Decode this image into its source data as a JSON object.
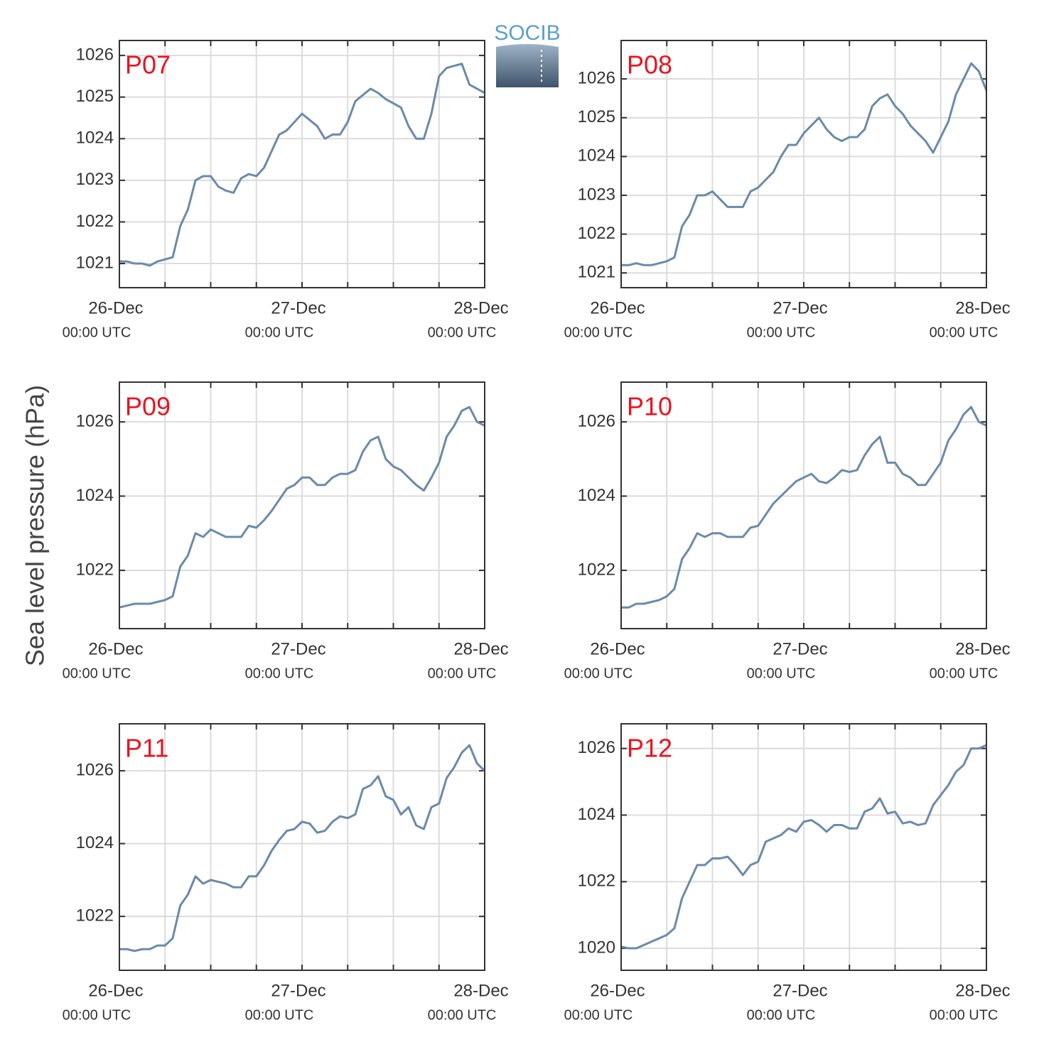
{
  "logo": "SOCIB",
  "ylabel": "Sea level pressure (hPa)",
  "chart_data": [
    {
      "type": "line",
      "title": "P07",
      "title_color": "#e8141e",
      "color": "#6a8aab",
      "grid": true,
      "x": [
        0,
        1,
        2,
        3,
        4,
        5,
        6,
        7,
        8,
        9,
        10,
        11,
        12,
        13,
        14,
        15,
        16,
        17,
        18,
        19,
        20,
        21,
        22,
        23,
        24,
        25,
        26,
        27,
        28,
        29,
        30,
        31,
        32,
        33,
        34,
        35,
        36,
        37,
        38,
        39,
        40,
        41,
        42,
        43,
        44,
        45,
        46,
        47,
        48
      ],
      "values": [
        1021.05,
        1021.05,
        1021.0,
        1021.0,
        1020.95,
        1021.05,
        1021.1,
        1021.15,
        1021.9,
        1022.3,
        1023.0,
        1023.1,
        1023.1,
        1022.85,
        1022.75,
        1022.7,
        1023.05,
        1023.15,
        1023.1,
        1023.3,
        1023.7,
        1024.1,
        1024.2,
        1024.4,
        1024.6,
        1024.45,
        1024.3,
        1024.0,
        1024.1,
        1024.1,
        1024.4,
        1024.9,
        1025.05,
        1025.2,
        1025.1,
        1024.95,
        1024.85,
        1024.75,
        1024.3,
        1024.0,
        1024.0,
        1024.6,
        1025.5,
        1025.7,
        1025.75,
        1025.8,
        1025.3,
        1025.2,
        1025.1
      ],
      "xlim": [
        0,
        48
      ],
      "xticks": [
        {
          "value": 0,
          "label": "26-Dec",
          "sublabel": "00:00 UTC"
        },
        {
          "value": 24,
          "label": "27-Dec",
          "sublabel": "00:00 UTC"
        },
        {
          "value": 48,
          "label": "28-Dec",
          "sublabel": "00:00 UTC"
        }
      ],
      "xminorticks": [
        6,
        12,
        18,
        30,
        36,
        42
      ],
      "ylim": [
        1020.42,
        1026.36
      ],
      "yticks": [
        1021,
        1022,
        1023,
        1024,
        1025,
        1026
      ]
    },
    {
      "type": "line",
      "title": "P08",
      "title_color": "#e8141e",
      "color": "#6a8aab",
      "grid": true,
      "x": [
        0,
        1,
        2,
        3,
        4,
        5,
        6,
        7,
        8,
        9,
        10,
        11,
        12,
        13,
        14,
        15,
        16,
        17,
        18,
        19,
        20,
        21,
        22,
        23,
        24,
        25,
        26,
        27,
        28,
        29,
        30,
        31,
        32,
        33,
        34,
        35,
        36,
        37,
        38,
        39,
        40,
        41,
        42,
        43,
        44,
        45,
        46,
        47,
        48
      ],
      "values": [
        1021.2,
        1021.2,
        1021.25,
        1021.2,
        1021.2,
        1021.25,
        1021.3,
        1021.4,
        1022.2,
        1022.5,
        1023.0,
        1023.0,
        1023.1,
        1022.9,
        1022.7,
        1022.7,
        1022.7,
        1023.1,
        1023.2,
        1023.4,
        1023.6,
        1024.0,
        1024.3,
        1024.3,
        1024.6,
        1024.8,
        1025.0,
        1024.7,
        1024.5,
        1024.4,
        1024.5,
        1024.5,
        1024.7,
        1025.3,
        1025.5,
        1025.6,
        1025.3,
        1025.1,
        1024.8,
        1024.6,
        1024.4,
        1024.1,
        1024.5,
        1024.9,
        1025.6,
        1026.0,
        1026.4,
        1026.2,
        1025.7
      ],
      "xlim": [
        0,
        48
      ],
      "xticks": [
        {
          "value": 0,
          "label": "26-Dec",
          "sublabel": "00:00 UTC"
        },
        {
          "value": 24,
          "label": "27-Dec",
          "sublabel": "00:00 UTC"
        },
        {
          "value": 48,
          "label": "28-Dec",
          "sublabel": "00:00 UTC"
        }
      ],
      "xminorticks": [
        6,
        12,
        18,
        30,
        36,
        42
      ],
      "ylim": [
        1020.62,
        1026.99
      ],
      "yticks": [
        1021,
        1022,
        1023,
        1024,
        1025,
        1026
      ]
    },
    {
      "type": "line",
      "title": "P09",
      "title_color": "#e8141e",
      "color": "#6a8aab",
      "grid": true,
      "x": [
        0,
        1,
        2,
        3,
        4,
        5,
        6,
        7,
        8,
        9,
        10,
        11,
        12,
        13,
        14,
        15,
        16,
        17,
        18,
        19,
        20,
        21,
        22,
        23,
        24,
        25,
        26,
        27,
        28,
        29,
        30,
        31,
        32,
        33,
        34,
        35,
        36,
        37,
        38,
        39,
        40,
        41,
        42,
        43,
        44,
        45,
        46,
        47,
        48
      ],
      "values": [
        1021.0,
        1021.05,
        1021.1,
        1021.1,
        1021.1,
        1021.15,
        1021.2,
        1021.3,
        1022.1,
        1022.4,
        1023.0,
        1022.9,
        1023.1,
        1023.0,
        1022.9,
        1022.9,
        1022.9,
        1023.2,
        1023.15,
        1023.35,
        1023.6,
        1023.9,
        1024.2,
        1024.3,
        1024.5,
        1024.5,
        1024.3,
        1024.3,
        1024.5,
        1024.6,
        1024.6,
        1024.7,
        1025.2,
        1025.5,
        1025.6,
        1025.0,
        1024.8,
        1024.7,
        1024.5,
        1024.3,
        1024.15,
        1024.5,
        1024.9,
        1025.6,
        1025.9,
        1026.3,
        1026.4,
        1026.0,
        1025.9
      ],
      "xlim": [
        0,
        48
      ],
      "xticks": [
        {
          "value": 0,
          "label": "26-Dec",
          "sublabel": "00:00 UTC"
        },
        {
          "value": 24,
          "label": "27-Dec",
          "sublabel": "00:00 UTC"
        },
        {
          "value": 48,
          "label": "28-Dec",
          "sublabel": "00:00 UTC"
        }
      ],
      "xminorticks": [
        6,
        12,
        18,
        30,
        36,
        42
      ],
      "ylim": [
        1020.43,
        1027.07
      ],
      "yticks": [
        1022,
        1024,
        1026
      ]
    },
    {
      "type": "line",
      "title": "P10",
      "title_color": "#e8141e",
      "color": "#6a8aab",
      "grid": true,
      "x": [
        0,
        1,
        2,
        3,
        4,
        5,
        6,
        7,
        8,
        9,
        10,
        11,
        12,
        13,
        14,
        15,
        16,
        17,
        18,
        19,
        20,
        21,
        22,
        23,
        24,
        25,
        26,
        27,
        28,
        29,
        30,
        31,
        32,
        33,
        34,
        35,
        36,
        37,
        38,
        39,
        40,
        41,
        42,
        43,
        44,
        45,
        46,
        47,
        48
      ],
      "values": [
        1021.0,
        1021.0,
        1021.1,
        1021.1,
        1021.15,
        1021.2,
        1021.3,
        1021.5,
        1022.3,
        1022.6,
        1023.0,
        1022.9,
        1023.0,
        1023.0,
        1022.9,
        1022.9,
        1022.9,
        1023.15,
        1023.2,
        1023.5,
        1023.8,
        1024.0,
        1024.2,
        1024.4,
        1024.5,
        1024.6,
        1024.4,
        1024.35,
        1024.5,
        1024.7,
        1024.65,
        1024.7,
        1025.1,
        1025.4,
        1025.6,
        1024.9,
        1024.9,
        1024.6,
        1024.5,
        1024.3,
        1024.3,
        1024.6,
        1024.9,
        1025.5,
        1025.8,
        1026.2,
        1026.4,
        1026.0,
        1025.9
      ],
      "xlim": [
        0,
        48
      ],
      "xticks": [
        {
          "value": 0,
          "label": "26-Dec",
          "sublabel": "00:00 UTC"
        },
        {
          "value": 24,
          "label": "27-Dec",
          "sublabel": "00:00 UTC"
        },
        {
          "value": 48,
          "label": "28-Dec",
          "sublabel": "00:00 UTC"
        }
      ],
      "xminorticks": [
        6,
        12,
        18,
        30,
        36,
        42
      ],
      "ylim": [
        1020.43,
        1027.07
      ],
      "yticks": [
        1022,
        1024,
        1026
      ]
    },
    {
      "type": "line",
      "title": "P11",
      "title_color": "#e8141e",
      "color": "#6a8aab",
      "grid": true,
      "x": [
        0,
        1,
        2,
        3,
        4,
        5,
        6,
        7,
        8,
        9,
        10,
        11,
        12,
        13,
        14,
        15,
        16,
        17,
        18,
        19,
        20,
        21,
        22,
        23,
        24,
        25,
        26,
        27,
        28,
        29,
        30,
        31,
        32,
        33,
        34,
        35,
        36,
        37,
        38,
        39,
        40,
        41,
        42,
        43,
        44,
        45,
        46,
        47,
        48
      ],
      "values": [
        1021.1,
        1021.1,
        1021.05,
        1021.1,
        1021.1,
        1021.2,
        1021.2,
        1021.4,
        1022.3,
        1022.6,
        1023.1,
        1022.9,
        1023.0,
        1022.95,
        1022.9,
        1022.8,
        1022.8,
        1023.1,
        1023.1,
        1023.4,
        1023.8,
        1024.1,
        1024.35,
        1024.4,
        1024.6,
        1024.55,
        1024.3,
        1024.35,
        1024.6,
        1024.75,
        1024.7,
        1024.8,
        1025.5,
        1025.6,
        1025.85,
        1025.3,
        1025.2,
        1024.8,
        1025.0,
        1024.5,
        1024.4,
        1025.0,
        1025.1,
        1025.8,
        1026.1,
        1026.5,
        1026.7,
        1026.2,
        1026.0
      ],
      "xlim": [
        0,
        48
      ],
      "xticks": [
        {
          "value": 0,
          "label": "26-Dec",
          "sublabel": "00:00 UTC"
        },
        {
          "value": 24,
          "label": "27-Dec",
          "sublabel": "00:00 UTC"
        },
        {
          "value": 48,
          "label": "28-Dec",
          "sublabel": "00:00 UTC"
        }
      ],
      "xminorticks": [
        6,
        12,
        18,
        30,
        36,
        42
      ],
      "ylim": [
        1020.52,
        1027.29
      ],
      "yticks": [
        1022,
        1024,
        1026
      ]
    },
    {
      "type": "line",
      "title": "P12",
      "title_color": "#e8141e",
      "color": "#6a8aab",
      "grid": true,
      "x": [
        0,
        1,
        2,
        3,
        4,
        5,
        6,
        7,
        8,
        9,
        10,
        11,
        12,
        13,
        14,
        15,
        16,
        17,
        18,
        19,
        20,
        21,
        22,
        23,
        24,
        25,
        26,
        27,
        28,
        29,
        30,
        31,
        32,
        33,
        34,
        35,
        36,
        37,
        38,
        39,
        40,
        41,
        42,
        43,
        44,
        45,
        46,
        47,
        48
      ],
      "values": [
        1020.05,
        1020.0,
        1020.0,
        1020.1,
        1020.2,
        1020.3,
        1020.4,
        1020.6,
        1021.5,
        1022.0,
        1022.5,
        1022.5,
        1022.7,
        1022.7,
        1022.75,
        1022.5,
        1022.2,
        1022.5,
        1022.6,
        1023.2,
        1023.3,
        1023.4,
        1023.6,
        1023.5,
        1023.8,
        1023.85,
        1023.7,
        1023.5,
        1023.7,
        1023.7,
        1023.6,
        1023.6,
        1024.1,
        1024.2,
        1024.5,
        1024.05,
        1024.1,
        1023.75,
        1023.8,
        1023.7,
        1023.75,
        1024.3,
        1024.6,
        1024.9,
        1025.3,
        1025.5,
        1026.0,
        1026.0,
        1026.1
      ],
      "xlim": [
        0,
        48
      ],
      "xticks": [
        {
          "value": 0,
          "label": "26-Dec",
          "sublabel": "00:00 UTC"
        },
        {
          "value": 24,
          "label": "27-Dec",
          "sublabel": "00:00 UTC"
        },
        {
          "value": 48,
          "label": "28-Dec",
          "sublabel": "00:00 UTC"
        }
      ],
      "xminorticks": [
        6,
        12,
        18,
        30,
        36,
        42
      ],
      "ylim": [
        1019.34,
        1026.74
      ],
      "yticks": [
        1020,
        1022,
        1024,
        1026
      ]
    }
  ]
}
